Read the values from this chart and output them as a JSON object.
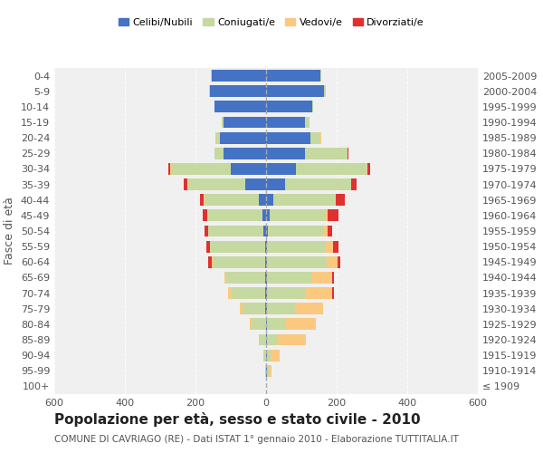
{
  "age_groups": [
    "100+",
    "95-99",
    "90-94",
    "85-89",
    "80-84",
    "75-79",
    "70-74",
    "65-69",
    "60-64",
    "55-59",
    "50-54",
    "45-49",
    "40-44",
    "35-39",
    "30-34",
    "25-29",
    "20-24",
    "15-19",
    "10-14",
    "5-9",
    "0-4"
  ],
  "birth_years": [
    "≤ 1909",
    "1910-1914",
    "1915-1919",
    "1920-1924",
    "1925-1929",
    "1930-1934",
    "1935-1939",
    "1940-1944",
    "1945-1949",
    "1950-1954",
    "1955-1959",
    "1960-1964",
    "1965-1969",
    "1970-1974",
    "1975-1979",
    "1980-1984",
    "1985-1989",
    "1990-1994",
    "1995-1999",
    "2000-2004",
    "2005-2009"
  ],
  "male": {
    "celibi": [
      0,
      0,
      0,
      0,
      0,
      2,
      2,
      2,
      2,
      3,
      8,
      10,
      20,
      60,
      100,
      120,
      130,
      120,
      145,
      160,
      155
    ],
    "coniugati": [
      0,
      3,
      8,
      18,
      40,
      65,
      95,
      110,
      150,
      155,
      155,
      155,
      155,
      160,
      170,
      25,
      12,
      5,
      2,
      2,
      2
    ],
    "vedovi": [
      0,
      0,
      0,
      2,
      5,
      8,
      10,
      5,
      3,
      2,
      2,
      2,
      2,
      2,
      2,
      2,
      2,
      0,
      0,
      0,
      0
    ],
    "divorziati": [
      0,
      0,
      0,
      0,
      0,
      0,
      0,
      0,
      8,
      10,
      10,
      12,
      10,
      12,
      5,
      0,
      0,
      0,
      0,
      0,
      0
    ]
  },
  "female": {
    "nubili": [
      0,
      2,
      2,
      2,
      2,
      2,
      2,
      2,
      2,
      3,
      5,
      10,
      20,
      55,
      85,
      110,
      125,
      110,
      130,
      165,
      155
    ],
    "coniugate": [
      0,
      5,
      12,
      30,
      55,
      80,
      110,
      125,
      170,
      165,
      160,
      160,
      175,
      185,
      200,
      120,
      30,
      12,
      4,
      3,
      2
    ],
    "vedove": [
      0,
      8,
      25,
      80,
      85,
      80,
      75,
      60,
      30,
      22,
      10,
      5,
      2,
      2,
      2,
      2,
      2,
      0,
      0,
      0,
      0
    ],
    "divorziate": [
      0,
      0,
      0,
      0,
      0,
      0,
      5,
      5,
      8,
      15,
      12,
      30,
      25,
      15,
      8,
      2,
      0,
      0,
      0,
      0,
      0
    ]
  },
  "colors": {
    "celibi": "#4472c4",
    "coniugati": "#c6d9a0",
    "vedovi": "#fac97f",
    "divorziati": "#e03030"
  },
  "legend_labels": [
    "Celibi/Nubili",
    "Coniugati/e",
    "Vedovi/e",
    "Divorziati/e"
  ],
  "title": "Popolazione per età, sesso e stato civile - 2010",
  "subtitle": "COMUNE DI CAVRIAGO (RE) - Dati ISTAT 1° gennaio 2010 - Elaborazione TUTTITALIA.IT",
  "ylabel_left": "Fasce di età",
  "xlim": 600,
  "bg_color": "#f5f5f5",
  "plot_bg": "#f0f0f0"
}
